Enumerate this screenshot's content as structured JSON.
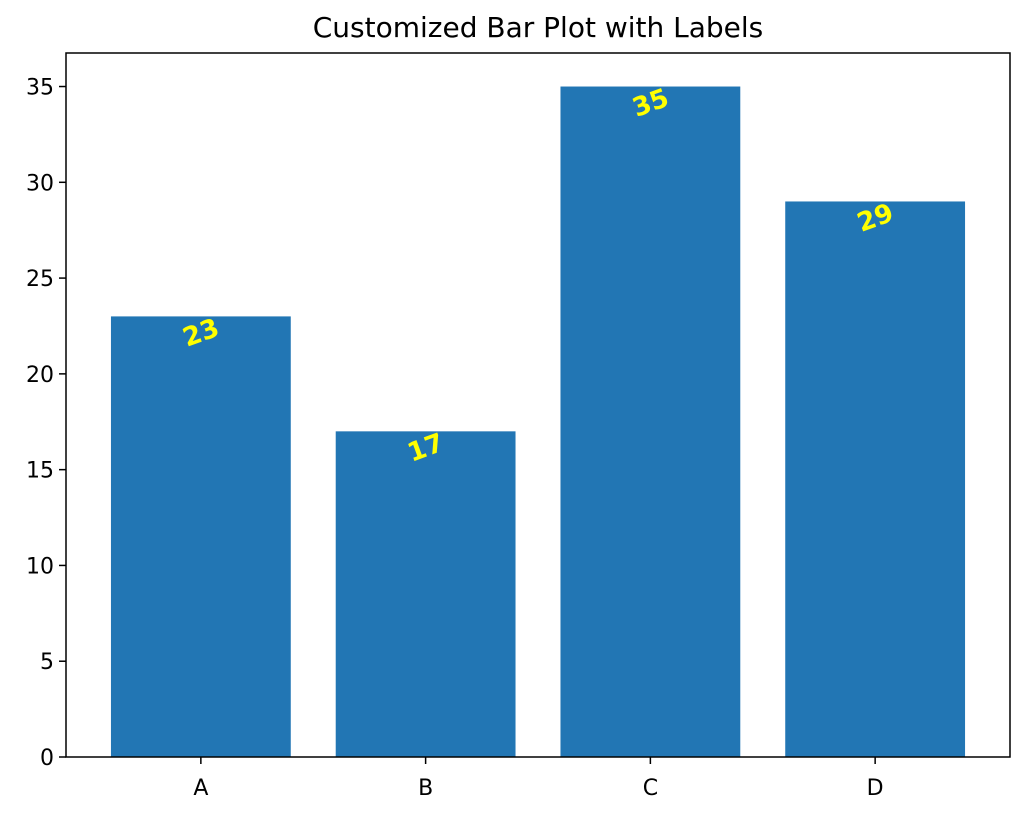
{
  "chart_data": {
    "type": "bar",
    "title": "Customized Bar Plot with Labels",
    "xlabel": "",
    "ylabel": "",
    "categories": [
      "A",
      "B",
      "C",
      "D"
    ],
    "values": [
      23,
      17,
      35,
      29
    ],
    "data_labels": [
      "23",
      "17",
      "35",
      "29"
    ],
    "ylim": [
      0,
      36.75
    ],
    "yticks": [
      0,
      5,
      10,
      15,
      20,
      25,
      30,
      35
    ],
    "ytick_labels": [
      "0",
      "5",
      "10",
      "15",
      "20",
      "25",
      "30",
      "35"
    ],
    "grid": false,
    "legend": "none",
    "label_rotation_degrees": 20,
    "colors": {
      "bar": "#2276b4",
      "label": "#ffff00",
      "axis": "#000000",
      "background": "#ffffff"
    }
  }
}
